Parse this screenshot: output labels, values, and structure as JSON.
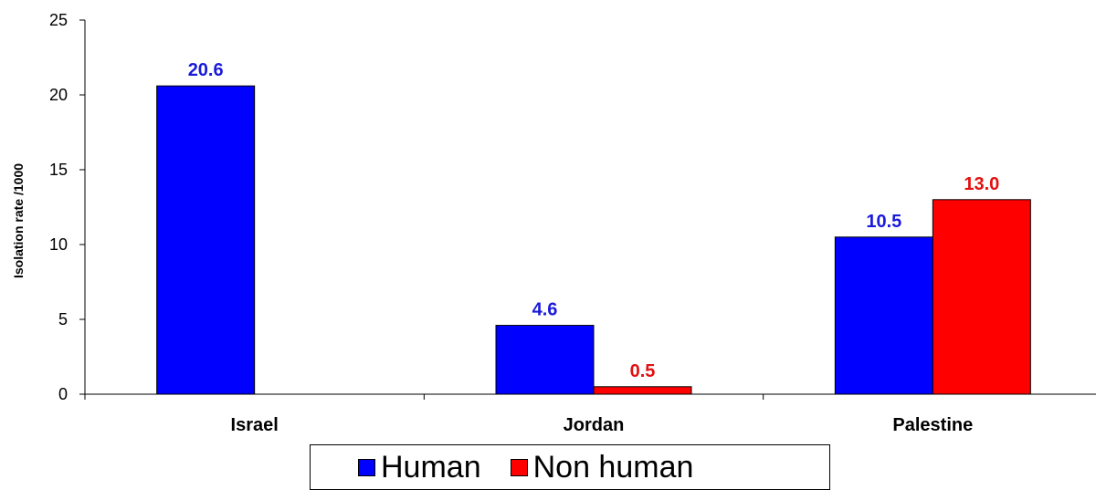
{
  "chart_data": {
    "type": "bar",
    "title": "",
    "xlabel": "",
    "ylabel": "Isolation rate /1000",
    "ylim": [
      0,
      25
    ],
    "yticks": [
      0,
      5,
      10,
      15,
      20,
      25
    ],
    "categories": [
      "Israel",
      "Jordan",
      "Palestine"
    ],
    "series": [
      {
        "name": "Human",
        "color": "#0000ff",
        "label_color": "#1a1adb",
        "values": [
          20.6,
          4.6,
          10.5
        ],
        "labels": [
          "20.6",
          "4.6",
          "10.5"
        ]
      },
      {
        "name": "Non human",
        "color": "#ff0000",
        "label_color": "#e31010",
        "values": [
          null,
          0.5,
          13.0
        ],
        "labels": [
          "",
          "0.5",
          "13.0"
        ]
      }
    ],
    "grid": false,
    "legend_position": "bottom"
  }
}
